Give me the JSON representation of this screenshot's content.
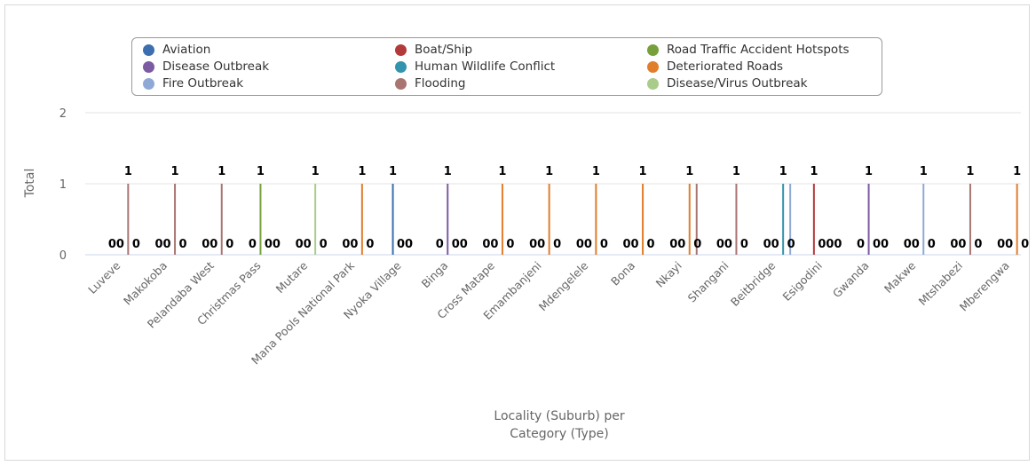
{
  "chart_data": {
    "type": "bar",
    "title": "",
    "xlabel": "Locality (Suburb) per Category (Type)",
    "ylabel": "Total",
    "ylim": [
      0,
      2
    ],
    "yticks": [
      "0",
      "1",
      "2"
    ],
    "grid": true,
    "legend_position": "top",
    "series_meta": [
      {
        "name": "Aviation",
        "color": "#3d6eaf"
      },
      {
        "name": "Boat/Ship",
        "color": "#b33a3a"
      },
      {
        "name": "Road Traffic Accident Hotspots",
        "color": "#77a03a"
      },
      {
        "name": "Disease Outbreak",
        "color": "#7b5ba1"
      },
      {
        "name": "Human Wildlife Conflict",
        "color": "#3493ad"
      },
      {
        "name": "Deteriorated Roads",
        "color": "#e07e2c"
      },
      {
        "name": "Fire Outbreak",
        "color": "#8fa9d6"
      },
      {
        "name": "Flooding",
        "color": "#a87572"
      },
      {
        "name": "Disease/Virus Outbreak",
        "color": "#a9cc8a"
      }
    ],
    "categories": [
      "Luveve",
      "Makokoba",
      "Pelandaba West",
      "Christmas Pass",
      "Mutare",
      "Mana Pools National Park",
      "Nyoka Village",
      "Binga",
      "Cross Matape",
      "Emambanjeni",
      "Mdengelele",
      "Bona",
      "Nkayi",
      "Shangani",
      "Beitbridge",
      "Esigodini",
      "Gwanda",
      "Makwe",
      "Mtshabezi",
      "Mberengwa"
    ],
    "points": [
      {
        "category": "Luveve",
        "labels": [
          "0",
          "0",
          "1",
          "0"
        ],
        "bars": [
          {
            "series": "Flooding",
            "value": 1
          }
        ]
      },
      {
        "category": "Makokoba",
        "labels": [
          "0",
          "0",
          "1",
          "0"
        ],
        "bars": [
          {
            "series": "Flooding",
            "value": 1
          }
        ]
      },
      {
        "category": "Pelandaba West",
        "labels": [
          "0",
          "0",
          "1",
          "0"
        ],
        "bars": [
          {
            "series": "Flooding",
            "value": 1
          }
        ]
      },
      {
        "category": "Christmas Pass",
        "labels": [
          "0",
          "1",
          "0",
          "0"
        ],
        "bars": [
          {
            "series": "Road Traffic Accident Hotspots",
            "value": 1
          }
        ]
      },
      {
        "category": "Mutare",
        "labels": [
          "0",
          "0",
          "1",
          "0"
        ],
        "bars": [
          {
            "series": "Disease/Virus Outbreak",
            "value": 1
          }
        ]
      },
      {
        "category": "Mana Pools National Park",
        "labels": [
          "0",
          "0",
          "1",
          "0"
        ],
        "bars": [
          {
            "series": "Deteriorated Roads",
            "value": 1
          }
        ]
      },
      {
        "category": "Nyoka Village",
        "labels": [
          "1",
          "0",
          "0"
        ],
        "bars": [
          {
            "series": "Aviation",
            "value": 1
          }
        ]
      },
      {
        "category": "Binga",
        "labels": [
          "0",
          "1",
          "0",
          "0"
        ],
        "bars": [
          {
            "series": "Disease Outbreak",
            "value": 1
          }
        ]
      },
      {
        "category": "Cross Matape",
        "labels": [
          "0",
          "0",
          "1",
          "0"
        ],
        "bars": [
          {
            "series": "Deteriorated Roads",
            "value": 1
          }
        ]
      },
      {
        "category": "Emambanjeni",
        "labels": [
          "0",
          "0",
          "1",
          "0"
        ],
        "bars": [
          {
            "series": "Deteriorated Roads",
            "value": 1
          }
        ]
      },
      {
        "category": "Mdengelele",
        "labels": [
          "0",
          "0",
          "1",
          "0"
        ],
        "bars": [
          {
            "series": "Deteriorated Roads",
            "value": 1
          }
        ]
      },
      {
        "category": "Bona",
        "labels": [
          "0",
          "0",
          "1",
          "0"
        ],
        "bars": [
          {
            "series": "Deteriorated Roads",
            "value": 1
          }
        ]
      },
      {
        "category": "Nkayi",
        "labels": [
          "0",
          "0",
          "1",
          "0"
        ],
        "bars": [
          {
            "series": "Deteriorated Roads",
            "value": 1
          },
          {
            "series": "Flooding",
            "value": 1
          }
        ]
      },
      {
        "category": "Shangani",
        "labels": [
          "0",
          "0",
          "1",
          "0"
        ],
        "bars": [
          {
            "series": "Flooding",
            "value": 1
          }
        ]
      },
      {
        "category": "Beitbridge",
        "labels": [
          "0",
          "0",
          "1",
          "0"
        ],
        "bars": [
          {
            "series": "Human Wildlife Conflict",
            "value": 1
          },
          {
            "series": "Fire Outbreak",
            "value": 1
          }
        ]
      },
      {
        "category": "Esigodini",
        "labels": [
          "1",
          "0",
          "0",
          "0"
        ],
        "bars": [
          {
            "series": "Boat/Ship",
            "value": 1
          }
        ]
      },
      {
        "category": "Gwanda",
        "labels": [
          "0",
          "1",
          "0",
          "0"
        ],
        "bars": [
          {
            "series": "Disease Outbreak",
            "value": 1
          }
        ]
      },
      {
        "category": "Makwe",
        "labels": [
          "0",
          "0",
          "1",
          "0"
        ],
        "bars": [
          {
            "series": "Fire Outbreak",
            "value": 1
          }
        ]
      },
      {
        "category": "Mtshabezi",
        "labels": [
          "0",
          "0",
          "1",
          "0"
        ],
        "bars": [
          {
            "series": "Flooding",
            "value": 1
          }
        ]
      },
      {
        "category": "Mberengwa",
        "labels": [
          "0",
          "0",
          "1",
          "0"
        ],
        "bars": [
          {
            "series": "Deteriorated Roads",
            "value": 1
          }
        ]
      }
    ]
  },
  "legend": [
    {
      "label": "Aviation",
      "color": "#3d6eaf"
    },
    {
      "label": "Boat/Ship",
      "color": "#b33a3a"
    },
    {
      "label": "Road Traffic Accident Hotspots",
      "color": "#77a03a"
    },
    {
      "label": "Disease Outbreak",
      "color": "#7b5ba1"
    },
    {
      "label": "Human Wildlife Conflict",
      "color": "#3493ad"
    },
    {
      "label": "Deteriorated Roads",
      "color": "#e07e2c"
    },
    {
      "label": "Fire Outbreak",
      "color": "#8fa9d6"
    },
    {
      "label": "Flooding",
      "color": "#a87572"
    },
    {
      "label": "Disease/Virus Outbreak",
      "color": "#a9cc8a"
    }
  ],
  "axis": {
    "x_title_line1": "Locality (Suburb) per",
    "x_title_line2": "Category (Type)",
    "y_title": "Total"
  }
}
